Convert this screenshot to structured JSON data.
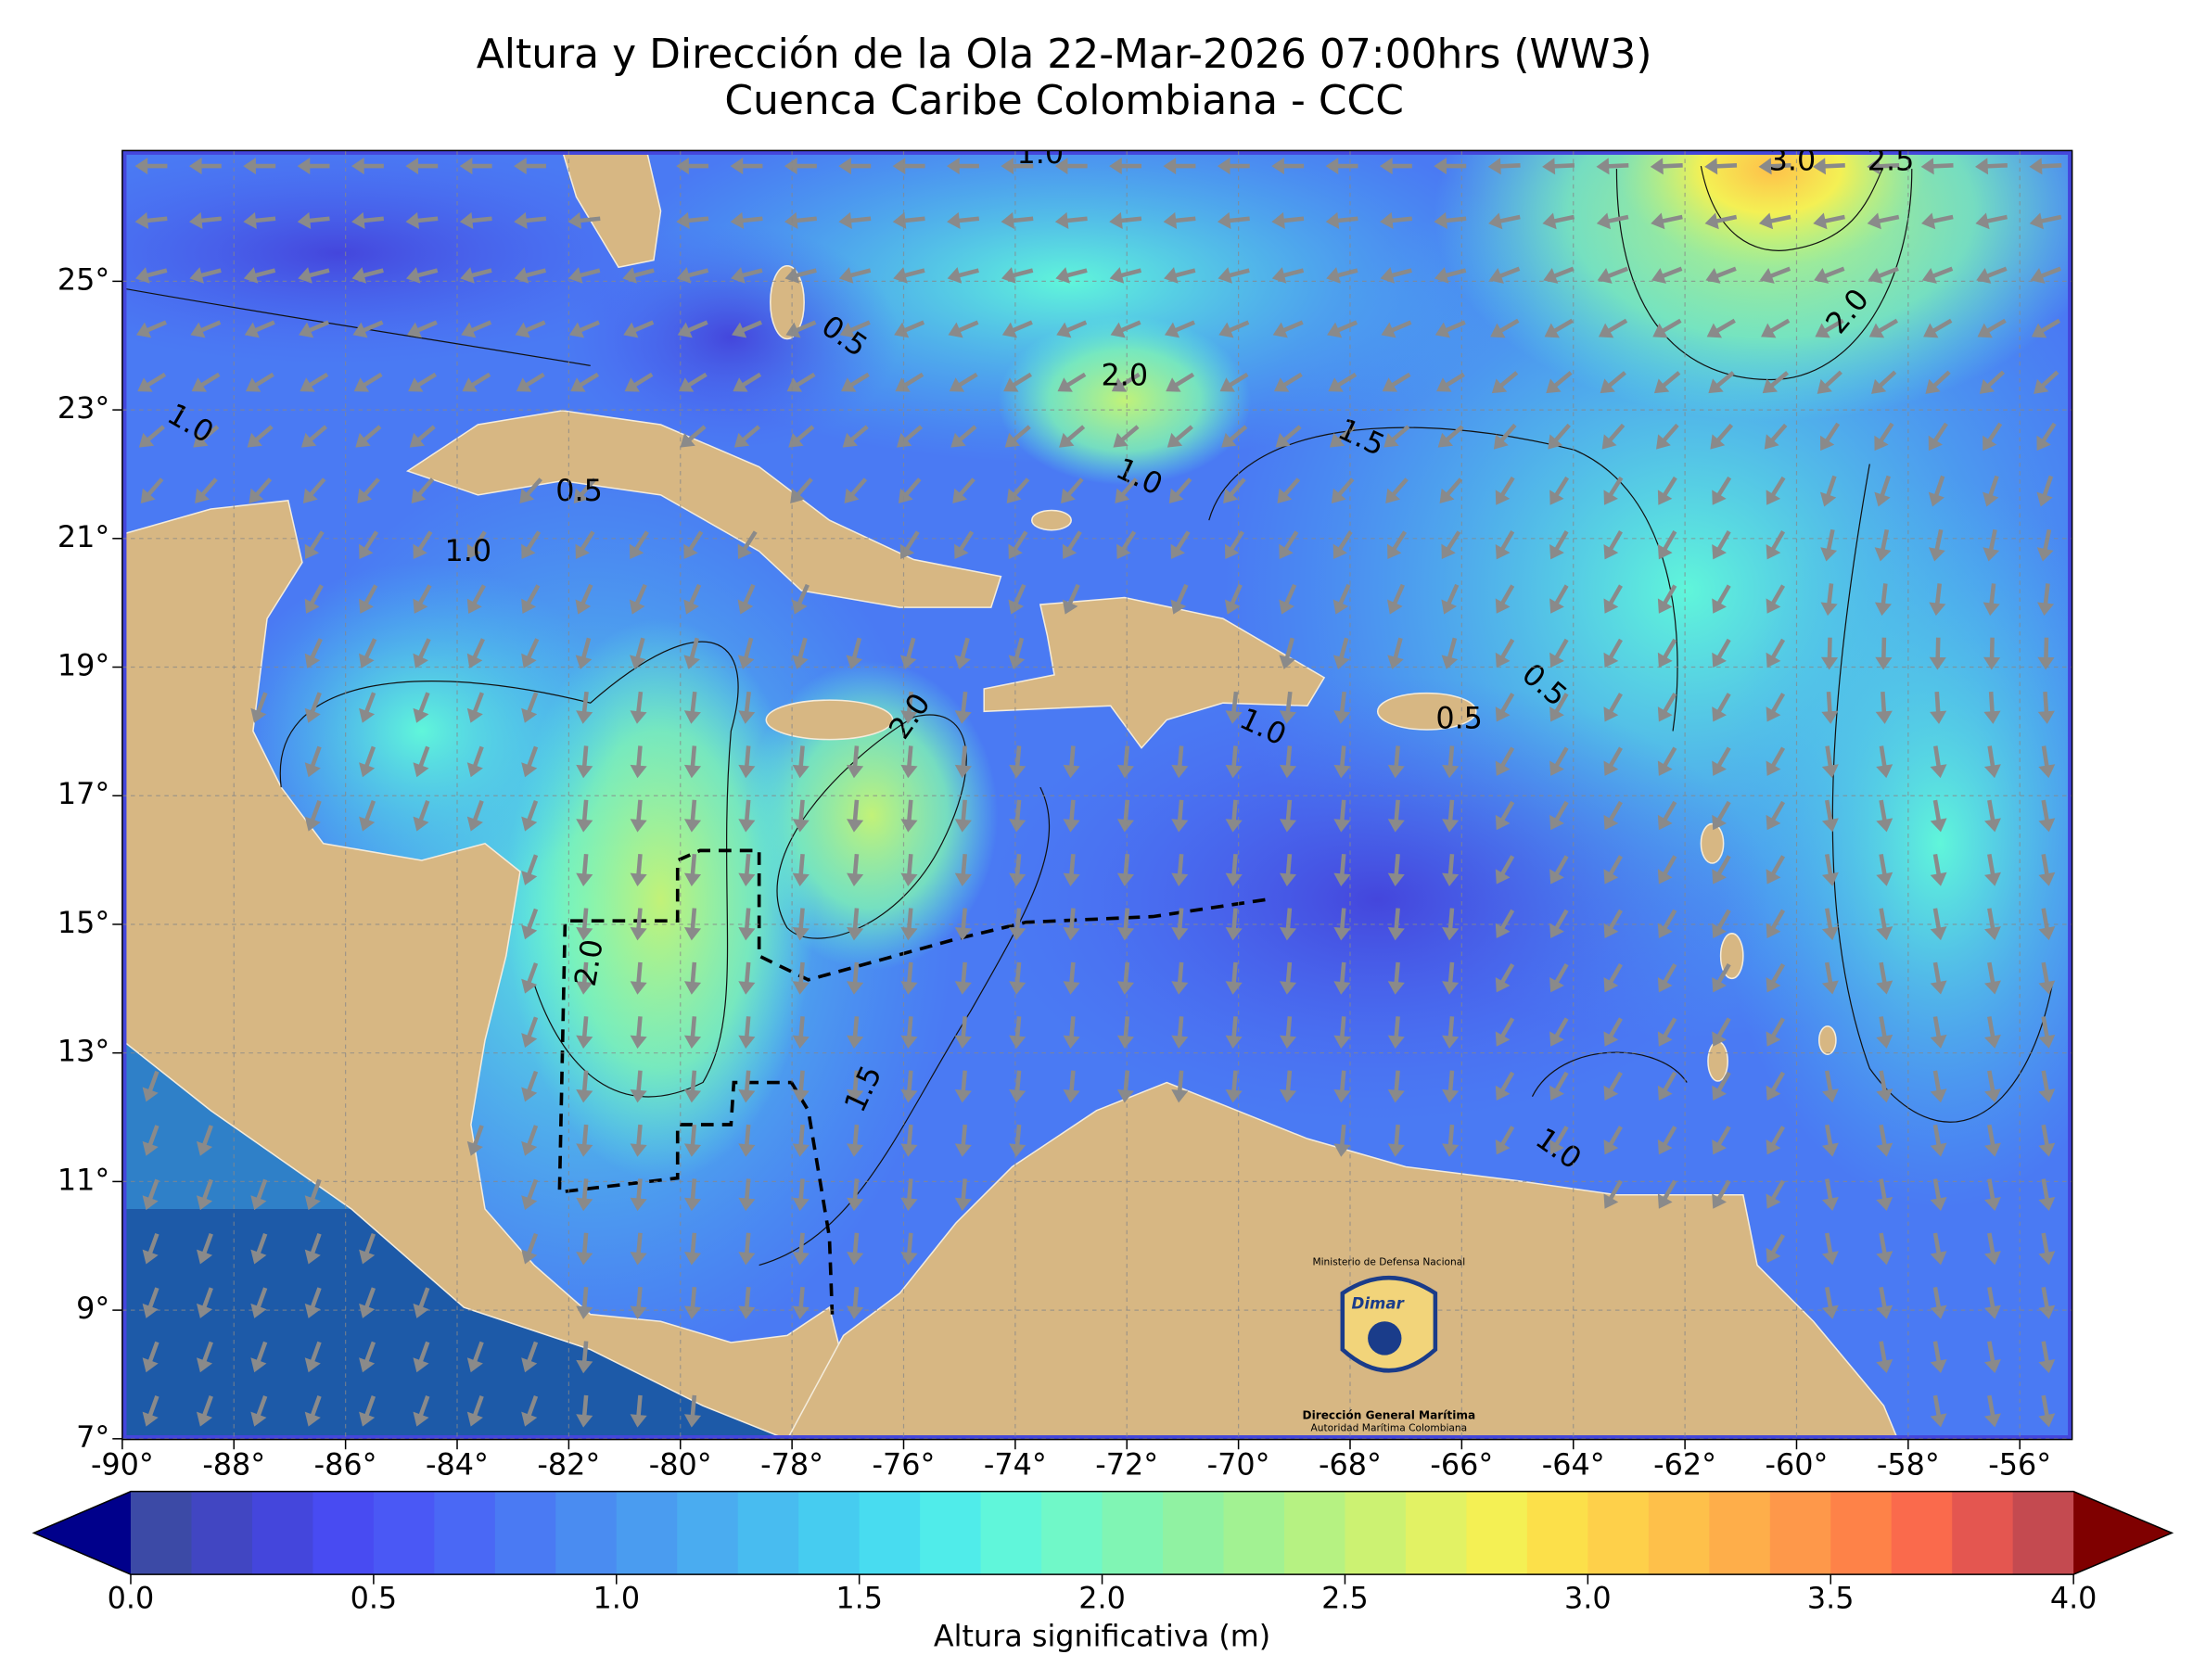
{
  "title": "Altura y Dirección de la Ola 22-Mar-2026 07:00hrs (WW3)",
  "subtitle": "Cuenca Caribe Colombiana - CCC",
  "map": {
    "lat_ticks": [
      {
        "value": 25,
        "label": "25°"
      },
      {
        "value": 23,
        "label": "23°"
      },
      {
        "value": 21,
        "label": "21°"
      },
      {
        "value": 19,
        "label": "19°"
      },
      {
        "value": 17,
        "label": "17°"
      },
      {
        "value": 15,
        "label": "15°"
      },
      {
        "value": 13,
        "label": "13°"
      },
      {
        "value": 11,
        "label": "11°"
      },
      {
        "value": 9,
        "label": "9°"
      },
      {
        "value": 7,
        "label": "7°"
      }
    ],
    "lon_ticks": [
      {
        "value": -90,
        "label": "-90°"
      },
      {
        "value": -88,
        "label": "-88°"
      },
      {
        "value": -86,
        "label": "-86°"
      },
      {
        "value": -84,
        "label": "-84°"
      },
      {
        "value": -82,
        "label": "-82°"
      },
      {
        "value": -80,
        "label": "-80°"
      },
      {
        "value": -78,
        "label": "-78°"
      },
      {
        "value": -76,
        "label": "-76°"
      },
      {
        "value": -74,
        "label": "-74°"
      },
      {
        "value": -72,
        "label": "-72°"
      },
      {
        "value": -70,
        "label": "-70°"
      },
      {
        "value": -68,
        "label": "-68°"
      },
      {
        "value": -66,
        "label": "-66°"
      },
      {
        "value": -64,
        "label": "-64°"
      },
      {
        "value": -62,
        "label": "-62°"
      },
      {
        "value": -60,
        "label": "-60°"
      },
      {
        "value": -58,
        "label": "-58°"
      },
      {
        "value": -56,
        "label": "-56°"
      }
    ],
    "contour_labels": [
      "0.5",
      "3.0",
      "2.5",
      "2.0",
      "0.5",
      "1.0",
      "2.0",
      "1.5",
      "1.0",
      "0.5",
      "1.0",
      "0.5",
      "1.0",
      "2.0",
      "1.0",
      "2.0",
      "1.5",
      "1.0"
    ]
  },
  "colorbar": {
    "label": "Altura significativa (m)",
    "range": [
      0,
      4
    ],
    "ticks": [
      {
        "value": 0,
        "label": "0.0"
      },
      0.5,
      {
        "value": 1,
        "label": "1.0"
      },
      1.5,
      {
        "value": 2,
        "label": "2.0"
      },
      2.5,
      {
        "value": 3,
        "label": "3.0"
      },
      3.5,
      {
        "value": 4,
        "label": "4.0"
      }
    ],
    "colors": [
      "#3c4aa6",
      "#4146c2",
      "#4446dc",
      "#484bf2",
      "#4a58f5",
      "#4a68f5",
      "#4a7af3",
      "#4a8cf1",
      "#4a9cf0",
      "#4aacf0",
      "#48bcf0",
      "#46ccf0",
      "#48dcf0",
      "#50ecea",
      "#60f6da",
      "#70f8c8",
      "#80f5b4",
      "#90f2a2",
      "#a2f292",
      "#b6f282",
      "#ccf272",
      "#e2f264",
      "#f4f054",
      "#fce04a",
      "#fed04a",
      "#fec04a",
      "#feae4a",
      "#fe984a",
      "#fe8248",
      "#fa6a4c",
      "#e45650",
      "#c44a50"
    ],
    "under_color": "#00008b",
    "over_color": "#7f0000"
  },
  "logo": {
    "ministry": "Ministerio de Defensa Nacional",
    "brand": "Dimar",
    "name": "Dirección General Marítima",
    "subname": "Autoridad Marítima Colombiana"
  }
}
